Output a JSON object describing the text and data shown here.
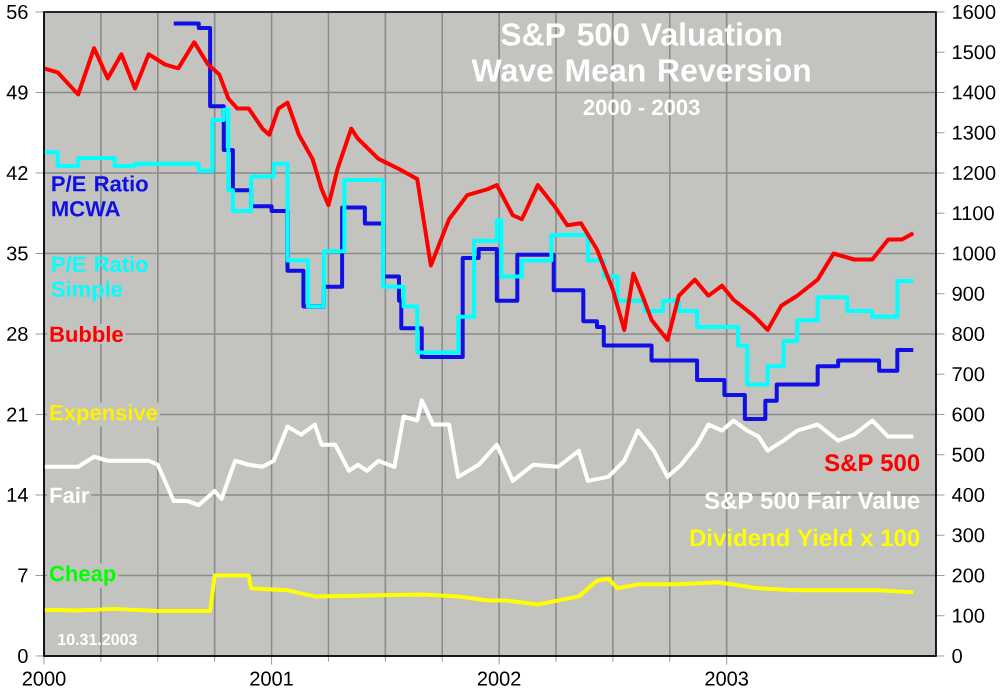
{
  "chart_data": {
    "type": "line",
    "title": "S&P 500 Valuation Wave Mean Reversion",
    "subtitle": "2000 - 2003",
    "xlim": [
      2000,
      2003.92
    ],
    "xticks": [
      2000,
      2001,
      2002,
      2003
    ],
    "ylim": [
      0,
      56
    ],
    "yticks": [
      0,
      7,
      14,
      21,
      28,
      35,
      42,
      49,
      56
    ],
    "y2lim": [
      0,
      1600
    ],
    "y2ticks": [
      0,
      100,
      200,
      300,
      400,
      500,
      600,
      700,
      800,
      900,
      1000,
      1100,
      1200,
      1300,
      1400,
      1500,
      1600
    ],
    "grid": true,
    "series": [
      {
        "name": "P/E Ratio MCWA",
        "type": "step",
        "color": "#1010e6",
        "x": [
          2000.57,
          2000.68,
          2000.73,
          2000.79,
          2000.83,
          2000.91,
          2001.0,
          2001.07,
          2001.14,
          2001.23,
          2001.31,
          2001.41,
          2001.49,
          2001.56,
          2001.57,
          2001.66,
          2001.84,
          2001.91,
          2001.99,
          2002.08,
          2002.24,
          2002.37,
          2002.43,
          2002.46,
          2002.67,
          2002.87,
          2002.99,
          2003.08,
          2003.17,
          2003.22,
          2003.4,
          2003.49,
          2003.67,
          2003.75,
          2003.82
        ],
        "values": [
          55.0,
          54.6,
          47.8,
          44.0,
          40.5,
          39.1,
          38.7,
          33.5,
          30.4,
          32.1,
          39.0,
          37.6,
          33.0,
          30.9,
          28.5,
          26.0,
          34.6,
          35.4,
          30.9,
          34.9,
          31.8,
          29.1,
          28.6,
          27.0,
          25.7,
          24.0,
          22.7,
          20.6,
          22.2,
          23.6,
          25.2,
          25.7,
          24.8,
          26.6,
          26.6
        ]
      },
      {
        "name": "P/E Ratio Simple",
        "type": "step",
        "color": "#00ffff",
        "x": [
          2000.0,
          2000.06,
          2000.15,
          2000.31,
          2000.4,
          2000.68,
          2000.74,
          2000.79,
          2000.81,
          2000.83,
          2000.91,
          2001.01,
          2001.07,
          2001.16,
          2001.23,
          2001.32,
          2001.49,
          2001.58,
          2001.64,
          2001.82,
          2001.89,
          2001.99,
          2002.01,
          2002.1,
          2002.23,
          2002.39,
          2002.46,
          2002.52,
          2002.64,
          2002.72,
          2002.79,
          2002.87,
          2003.05,
          2003.09,
          2003.18,
          2003.25,
          2003.31,
          2003.4,
          2003.53,
          2003.64,
          2003.75,
          2003.82
        ],
        "values": [
          43.8,
          42.6,
          43.3,
          42.6,
          42.8,
          42.2,
          46.6,
          47.5,
          40.5,
          38.7,
          41.7,
          42.8,
          34.4,
          30.4,
          35.2,
          41.4,
          32.1,
          30.4,
          26.4,
          29.5,
          36.1,
          37.9,
          33.0,
          34.4,
          36.6,
          34.4,
          33.0,
          30.9,
          30.0,
          30.9,
          30.0,
          28.6,
          27.0,
          23.6,
          25.2,
          27.4,
          29.2,
          31.2,
          30.0,
          29.5,
          32.6,
          32.6
        ]
      },
      {
        "name": "S&P 500",
        "axis": "y2",
        "color": "#ff0000",
        "x": [
          2000.0,
          2000.06,
          2000.15,
          2000.22,
          2000.28,
          2000.34,
          2000.4,
          2000.46,
          2000.53,
          2000.59,
          2000.66,
          2000.72,
          2000.77,
          2000.81,
          2000.85,
          2000.9,
          2000.96,
          2000.99,
          2001.03,
          2001.07,
          2001.12,
          2001.18,
          2001.22,
          2001.25,
          2001.29,
          2001.35,
          2001.38,
          2001.47,
          2001.56,
          2001.64,
          2001.7,
          2001.78,
          2001.86,
          2001.95,
          2001.99,
          2002.06,
          2002.1,
          2002.17,
          2002.24,
          2002.3,
          2002.36,
          2002.43,
          2002.5,
          2002.55,
          2002.59,
          2002.63,
          2002.67,
          2002.74,
          2002.79,
          2002.86,
          2002.92,
          2002.98,
          2003.03,
          2003.12,
          2003.18,
          2003.24,
          2003.31,
          2003.4,
          2003.47,
          2003.56,
          2003.64,
          2003.71,
          2003.77,
          2003.82
        ],
        "values": [
          1460,
          1450,
          1395,
          1510,
          1435,
          1495,
          1410,
          1495,
          1470,
          1460,
          1525,
          1470,
          1445,
          1385,
          1360,
          1360,
          1310,
          1295,
          1360,
          1375,
          1295,
          1235,
          1160,
          1120,
          1210,
          1310,
          1285,
          1235,
          1210,
          1185,
          970,
          1085,
          1145,
          1160,
          1170,
          1095,
          1085,
          1170,
          1120,
          1070,
          1075,
          1010,
          910,
          810,
          950,
          895,
          835,
          785,
          895,
          935,
          895,
          920,
          885,
          845,
          810,
          870,
          895,
          935,
          1000,
          985,
          985,
          1035,
          1035,
          1050
        ]
      },
      {
        "name": "S&P 500 Fair Value",
        "axis": "y2",
        "color": "#ffffff",
        "x": [
          2000.0,
          2000.06,
          2000.15,
          2000.22,
          2000.28,
          2000.34,
          2000.41,
          2000.46,
          2000.5,
          2000.57,
          2000.63,
          2000.68,
          2000.75,
          2000.78,
          2000.84,
          2000.9,
          2000.96,
          2001.01,
          2001.07,
          2001.13,
          2001.19,
          2001.22,
          2001.28,
          2001.34,
          2001.38,
          2001.42,
          2001.47,
          2001.54,
          2001.58,
          2001.64,
          2001.66,
          2001.71,
          2001.78,
          2001.82,
          2001.91,
          2001.99,
          2002.06,
          2002.15,
          2002.26,
          2002.35,
          2002.39,
          2002.48,
          2002.55,
          2002.61,
          2002.68,
          2002.74,
          2002.8,
          2002.87,
          2002.92,
          2002.98,
          2003.03,
          2003.09,
          2003.14,
          2003.18,
          2003.25,
          2003.31,
          2003.4,
          2003.49,
          2003.56,
          2003.64,
          2003.71,
          2003.77,
          2003.82
        ],
        "values": [
          470,
          470,
          470,
          495,
          485,
          485,
          485,
          485,
          475,
          385,
          385,
          375,
          410,
          390,
          485,
          475,
          470,
          485,
          570,
          550,
          575,
          525,
          525,
          460,
          475,
          460,
          485,
          470,
          595,
          585,
          635,
          575,
          575,
          445,
          475,
          525,
          435,
          475,
          470,
          510,
          435,
          445,
          485,
          560,
          510,
          445,
          475,
          525,
          575,
          560,
          585,
          560,
          545,
          510,
          535,
          560,
          575,
          535,
          550,
          585,
          545,
          545,
          545
        ]
      },
      {
        "name": "Dividend Yield x 100",
        "axis": "y2",
        "color": "#ffff00",
        "x": [
          2000.0,
          2000.15,
          2000.31,
          2000.5,
          2000.73,
          2000.75,
          2000.9,
          2000.91,
          2001.07,
          2001.19,
          2001.66,
          2001.82,
          2001.95,
          2002.03,
          2002.17,
          2002.35,
          2002.43,
          2002.48,
          2002.52,
          2002.61,
          2002.79,
          2002.96,
          2003.14,
          2003.31,
          2003.67,
          2003.82
        ],
        "values": [
          115,
          113,
          117,
          112,
          112,
          200,
          200,
          168,
          163,
          148,
          153,
          148,
          138,
          138,
          128,
          148,
          187,
          192,
          168,
          178,
          178,
          183,
          168,
          163,
          163,
          158
        ]
      }
    ],
    "annotations": [
      "Bubble",
      "Expensive",
      "Fair",
      "Cheap",
      "10.31.2003"
    ]
  }
}
